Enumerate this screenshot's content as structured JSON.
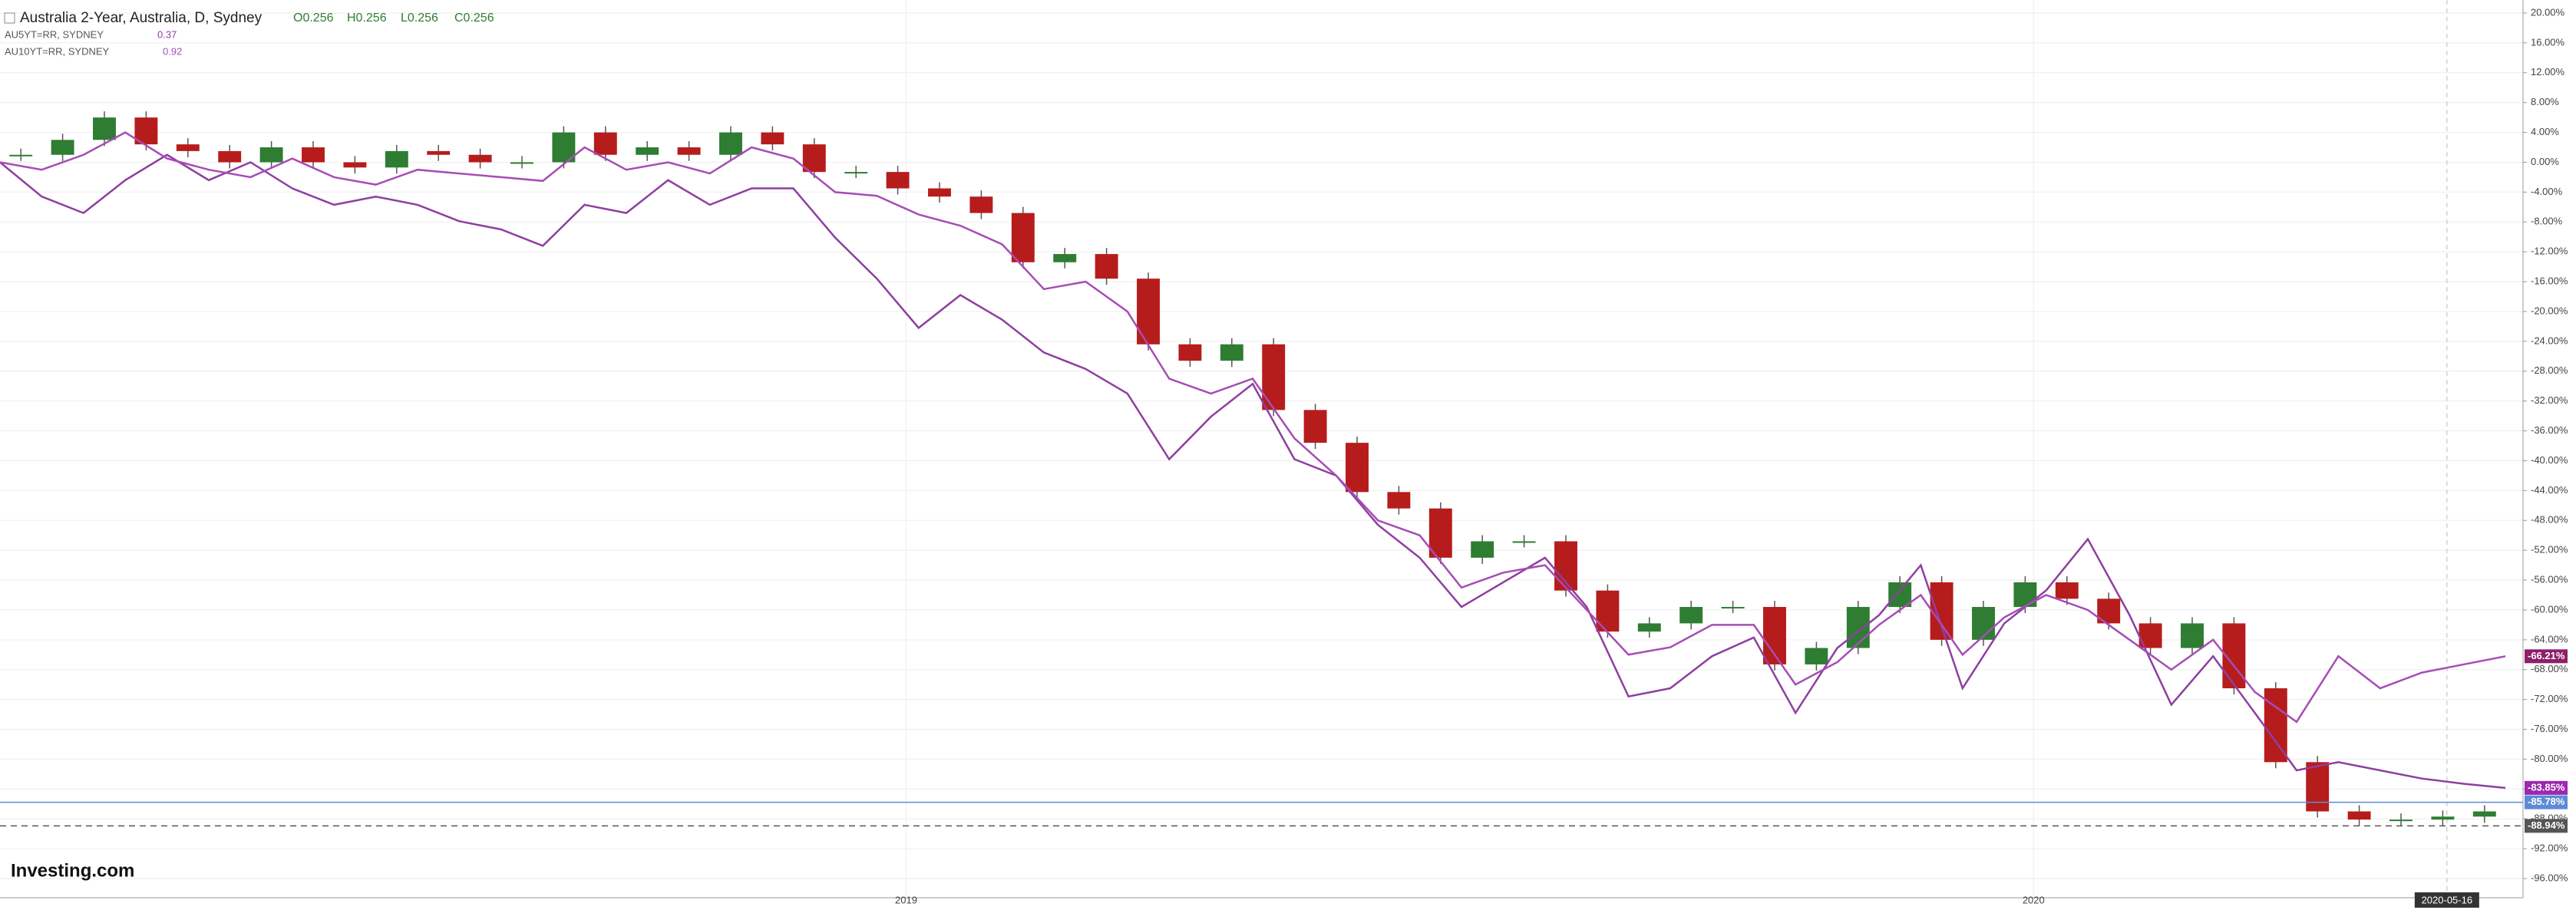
{
  "chart_data": {
    "type": "candle-line",
    "title": "Australia 2-Year, Australia, D, Sydney",
    "ohlc": [
      "O0.256",
      "H0.256",
      "L0.256",
      "C0.256"
    ],
    "logo": "Investing.com",
    "ylim": [
      20,
      -96
    ],
    "xlim": [
      0,
      60
    ],
    "yticks": [
      {
        "value": 20,
        "label": "20.00%"
      },
      {
        "value": 16,
        "label": "16.00%"
      },
      {
        "value": 12,
        "label": "12.00%"
      },
      {
        "value": 8,
        "label": "8.00%"
      },
      {
        "value": 4,
        "label": "4.00%"
      },
      {
        "value": 0,
        "label": "0.00%"
      },
      {
        "value": -4,
        "label": "-4.00%"
      },
      {
        "value": -8,
        "label": "-8.00%"
      },
      {
        "value": -12,
        "label": "-12.00%"
      },
      {
        "value": -16,
        "label": "-16.00%"
      },
      {
        "value": -20,
        "label": "-20.00%"
      },
      {
        "value": -24,
        "label": "-24.00%"
      },
      {
        "value": -28,
        "label": "-28.00%"
      },
      {
        "value": -32,
        "label": "-32.00%"
      },
      {
        "value": -36,
        "label": "-36.00%"
      },
      {
        "value": -40,
        "label": "-40.00%"
      },
      {
        "value": -44,
        "label": "-44.00%"
      },
      {
        "value": -48,
        "label": "-48.00%"
      },
      {
        "value": -52,
        "label": "-52.00%"
      },
      {
        "value": -56,
        "label": "-56.00%"
      },
      {
        "value": -60,
        "label": "-60.00%"
      },
      {
        "value": -64,
        "label": "-64.00%"
      },
      {
        "value": -68,
        "label": "-68.00%"
      },
      {
        "value": -72,
        "label": "-72.00%"
      },
      {
        "value": -76,
        "label": "-76.00%"
      },
      {
        "value": -80,
        "label": "-80.00%"
      },
      {
        "value": -84,
        "label": "-84.00%"
      },
      {
        "value": -88,
        "label": "-88.00%"
      },
      {
        "value": -92,
        "label": "-92.00%"
      },
      {
        "value": -96,
        "label": "-96.00%"
      }
    ],
    "xticks": [
      {
        "value": 21.7,
        "label": "2019"
      },
      {
        "value": 48.7,
        "label": "2020"
      },
      {
        "value": 58.6,
        "label": "2020-05-16"
      }
    ],
    "grid": true,
    "up_color": "#2e7d32",
    "down_color": "#b71c1c",
    "main": {
      "name": "Australia 2-Year",
      "values": [
        1,
        1,
        3,
        6,
        2.4,
        1.5,
        0,
        2,
        0,
        -0.7,
        1.5,
        1,
        0,
        0,
        4,
        1,
        2,
        1,
        4,
        2.4,
        -1.3,
        -1.3,
        -3.5,
        -4.6,
        -6.8,
        -13.4,
        -12.3,
        -15.6,
        -24.4,
        -26.6,
        -24.4,
        -33.2,
        -37.6,
        -44.2,
        -46.4,
        -53,
        -50.8,
        -50.8,
        -57.4,
        -62.9,
        -61.8,
        -59.6,
        -59.6,
        -67.3,
        -65.1,
        -59.6,
        -56.3,
        -64,
        -59.6,
        -56.3,
        -58.5,
        -61.8,
        -65.1,
        -61.8,
        -70.5,
        -80.4,
        -87,
        -88.1,
        -88.1,
        -87.7,
        -87
      ]
    },
    "series": [
      {
        "name": "AU5YT=RR, SYDNEY",
        "legend_value": "0.37",
        "color": "#8e3fa0",
        "values": [
          0,
          -4.6,
          -6.8,
          -2.4,
          1,
          -2.4,
          0,
          -3.5,
          -5.7,
          -4.6,
          -5.7,
          -7.9,
          -9,
          -11.2,
          -5.7,
          -6.8,
          -2.4,
          -5.7,
          -3.5,
          -3.5,
          -10.1,
          -15.6,
          -22.2,
          -17.8,
          -21.1,
          -25.5,
          -27.7,
          -31,
          -39.8,
          -34.1,
          -29.7,
          -39.8,
          -42,
          -48.6,
          -53,
          -59.6,
          -56.3,
          -53,
          -59.6,
          -71.6,
          -70.5,
          -66.2,
          -63.7,
          -73.8,
          -65.1,
          -60.7,
          -54,
          -70.5,
          -61.8,
          -57.4,
          -50.5,
          -60.7,
          -72.7,
          -66.2,
          -73.8,
          -81.5,
          -80.4,
          -81.5,
          -82.6,
          -83.3,
          -83.85
        ]
      },
      {
        "name": "AU10YT=RR, SYDNEY",
        "legend_value": "0.92",
        "color": "#a64db5",
        "values": [
          0,
          -1,
          1,
          4,
          0.5,
          -1,
          -2,
          0.5,
          -2,
          -3,
          -1,
          -1.5,
          -2,
          -2.5,
          2,
          -1,
          0,
          -1.5,
          2,
          0.5,
          -4,
          -4.5,
          -7,
          -8.5,
          -11,
          -17,
          -16,
          -20,
          -29,
          -31,
          -29,
          -37,
          -42,
          -48,
          -50,
          -57,
          -55,
          -54,
          -60,
          -66,
          -65,
          -62,
          -62,
          -70,
          -67,
          -62,
          -58,
          -66,
          -61,
          -58,
          -60,
          -64,
          -68,
          -64,
          -71,
          -75,
          -66.2,
          -70.5,
          -68.4,
          -67.3,
          -66.21
        ]
      }
    ],
    "badges": [
      {
        "value": -66.21,
        "label": "-66.21%",
        "color": "#8e1f6a"
      },
      {
        "value": -83.85,
        "label": "-83.85%",
        "color": "#9c27b0"
      },
      {
        "value": -85.78,
        "label": "-85.78%",
        "color": "#5c8bd6"
      },
      {
        "value": -88.94,
        "label": "-88.94%",
        "color": "#555555"
      }
    ]
  }
}
